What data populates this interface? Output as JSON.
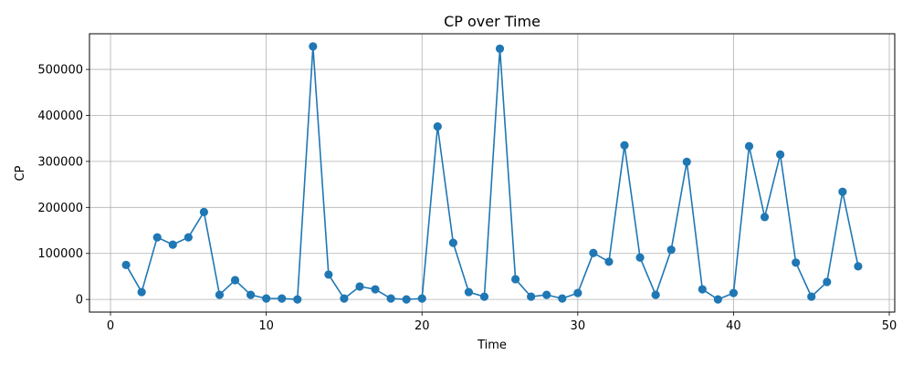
{
  "chart_data": {
    "type": "line",
    "title": "CP over Time",
    "xlabel": "Time",
    "ylabel": "CP",
    "xlim": [
      -1.35,
      50.35
    ],
    "ylim": [
      -27500,
      577500
    ],
    "x_ticks": [
      0,
      10,
      20,
      30,
      40,
      50
    ],
    "y_ticks": [
      0,
      100000,
      200000,
      300000,
      400000,
      500000
    ],
    "grid": true,
    "series_color": "#1f77b4",
    "markers": true,
    "series": [
      {
        "x": [
          1,
          2,
          3,
          4,
          5,
          6,
          7,
          8,
          9,
          10,
          11,
          12,
          13,
          14,
          15,
          16,
          17,
          18,
          19,
          20,
          21,
          22,
          23,
          24,
          25,
          26,
          27,
          28,
          29,
          30,
          31,
          32,
          33,
          34,
          35,
          36,
          37,
          38,
          39,
          40,
          41,
          42,
          43,
          44,
          45,
          46,
          47,
          48
        ],
        "values": [
          75000,
          16000,
          135000,
          119000,
          135000,
          190000,
          10000,
          42000,
          10000,
          2000,
          2000,
          0,
          550000,
          54000,
          2000,
          28000,
          22000,
          2000,
          0,
          2000,
          376000,
          123000,
          16000,
          6000,
          545000,
          44000,
          6000,
          10000,
          2000,
          14000,
          101000,
          82000,
          335000,
          91000,
          10000,
          108000,
          299000,
          22000,
          0,
          14000,
          333000,
          179000,
          315000,
          80000,
          6000,
          38000,
          234000,
          72000
        ]
      }
    ]
  }
}
